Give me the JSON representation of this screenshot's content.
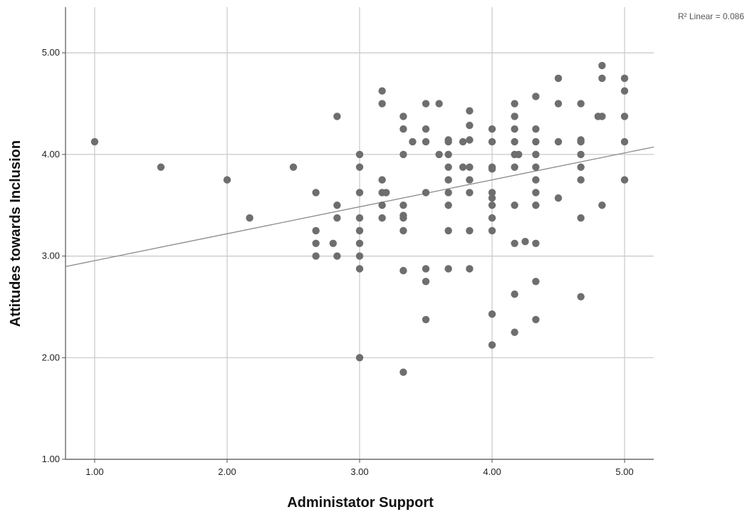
{
  "chart_data": {
    "type": "scatter",
    "xlabel": "Administator Support",
    "ylabel": "Attitudes towards Inclusion",
    "xlim": [
      0.78,
      5.22
    ],
    "ylim": [
      1.0,
      5.45
    ],
    "x_ticks": [
      "1.00",
      "2.00",
      "3.00",
      "4.00",
      "5.00"
    ],
    "y_ticks": [
      "1.00",
      "2.00",
      "3.00",
      "4.00",
      "5.00"
    ],
    "grid": true,
    "fit_label": "R² Linear = 0.086",
    "fit_line": {
      "intercept": 2.69,
      "slope": 0.265
    },
    "colors": {
      "point": "#6e6e6e",
      "grid": "#c8c8c8",
      "axis": "#555555",
      "fit": "#8a8a8a"
    },
    "points": [
      [
        1.0,
        4.125
      ],
      [
        1.5,
        3.875
      ],
      [
        2.0,
        3.75
      ],
      [
        2.17,
        3.375
      ],
      [
        2.5,
        3.875
      ],
      [
        2.67,
        3.625
      ],
      [
        2.67,
        3.25
      ],
      [
        2.67,
        3.125
      ],
      [
        2.67,
        3.0
      ],
      [
        2.8,
        3.125
      ],
      [
        2.83,
        4.375
      ],
      [
        2.83,
        3.5
      ],
      [
        2.83,
        3.375
      ],
      [
        2.83,
        3.0
      ],
      [
        3.0,
        4.0
      ],
      [
        3.0,
        3.875
      ],
      [
        3.0,
        3.625
      ],
      [
        3.0,
        3.375
      ],
      [
        3.0,
        3.25
      ],
      [
        3.0,
        3.125
      ],
      [
        3.0,
        3.0
      ],
      [
        3.0,
        2.875
      ],
      [
        3.0,
        2.0
      ],
      [
        3.17,
        4.625
      ],
      [
        3.17,
        4.5
      ],
      [
        3.17,
        3.75
      ],
      [
        3.17,
        3.625
      ],
      [
        3.17,
        3.5
      ],
      [
        3.17,
        3.375
      ],
      [
        3.2,
        3.625
      ],
      [
        3.33,
        4.375
      ],
      [
        3.33,
        4.25
      ],
      [
        3.33,
        4.0
      ],
      [
        3.33,
        3.5
      ],
      [
        3.33,
        3.4
      ],
      [
        3.33,
        3.375
      ],
      [
        3.33,
        3.25
      ],
      [
        3.33,
        2.857
      ],
      [
        3.33,
        1.857
      ],
      [
        3.4,
        4.125
      ],
      [
        3.5,
        4.5
      ],
      [
        3.5,
        4.25
      ],
      [
        3.5,
        4.125
      ],
      [
        3.5,
        3.625
      ],
      [
        3.5,
        2.875
      ],
      [
        3.5,
        2.75
      ],
      [
        3.5,
        2.375
      ],
      [
        3.6,
        4.5
      ],
      [
        3.6,
        4.0
      ],
      [
        3.67,
        4.143
      ],
      [
        3.67,
        4.125
      ],
      [
        3.67,
        4.0
      ],
      [
        3.67,
        3.875
      ],
      [
        3.67,
        3.75
      ],
      [
        3.67,
        3.625
      ],
      [
        3.67,
        3.5
      ],
      [
        3.67,
        3.25
      ],
      [
        3.67,
        2.875
      ],
      [
        3.78,
        4.125
      ],
      [
        3.78,
        3.875
      ],
      [
        3.83,
        4.429
      ],
      [
        3.83,
        4.286
      ],
      [
        3.83,
        4.143
      ],
      [
        3.83,
        3.875
      ],
      [
        3.83,
        3.75
      ],
      [
        3.83,
        3.625
      ],
      [
        3.83,
        3.25
      ],
      [
        3.83,
        2.875
      ],
      [
        4.0,
        4.25
      ],
      [
        4.0,
        4.125
      ],
      [
        4.0,
        3.875
      ],
      [
        4.0,
        3.857
      ],
      [
        4.0,
        3.625
      ],
      [
        4.0,
        3.571
      ],
      [
        4.0,
        3.5
      ],
      [
        4.0,
        3.375
      ],
      [
        4.0,
        3.25
      ],
      [
        4.0,
        2.429
      ],
      [
        4.0,
        2.125
      ],
      [
        4.17,
        4.5
      ],
      [
        4.17,
        4.375
      ],
      [
        4.17,
        4.25
      ],
      [
        4.17,
        4.125
      ],
      [
        4.17,
        4.0
      ],
      [
        4.17,
        3.875
      ],
      [
        4.17,
        3.5
      ],
      [
        4.17,
        3.125
      ],
      [
        4.17,
        2.625
      ],
      [
        4.17,
        2.25
      ],
      [
        4.2,
        4.0
      ],
      [
        4.25,
        3.143
      ],
      [
        4.33,
        4.571
      ],
      [
        4.33,
        4.25
      ],
      [
        4.33,
        4.125
      ],
      [
        4.33,
        4.0
      ],
      [
        4.33,
        3.875
      ],
      [
        4.33,
        3.75
      ],
      [
        4.33,
        3.625
      ],
      [
        4.33,
        3.5
      ],
      [
        4.33,
        3.125
      ],
      [
        4.33,
        2.75
      ],
      [
        4.33,
        2.375
      ],
      [
        4.5,
        4.75
      ],
      [
        4.5,
        4.5
      ],
      [
        4.5,
        4.125
      ],
      [
        4.5,
        3.571
      ],
      [
        4.67,
        4.5
      ],
      [
        4.67,
        4.143
      ],
      [
        4.67,
        4.125
      ],
      [
        4.67,
        4.0
      ],
      [
        4.67,
        3.875
      ],
      [
        4.67,
        3.75
      ],
      [
        4.67,
        3.375
      ],
      [
        4.67,
        2.6
      ],
      [
        4.8,
        4.375
      ],
      [
        4.83,
        4.875
      ],
      [
        4.83,
        4.75
      ],
      [
        4.83,
        4.375
      ],
      [
        4.83,
        3.5
      ],
      [
        5.0,
        4.75
      ],
      [
        5.0,
        4.625
      ],
      [
        5.0,
        4.375
      ],
      [
        5.0,
        4.125
      ],
      [
        5.0,
        3.75
      ]
    ]
  }
}
